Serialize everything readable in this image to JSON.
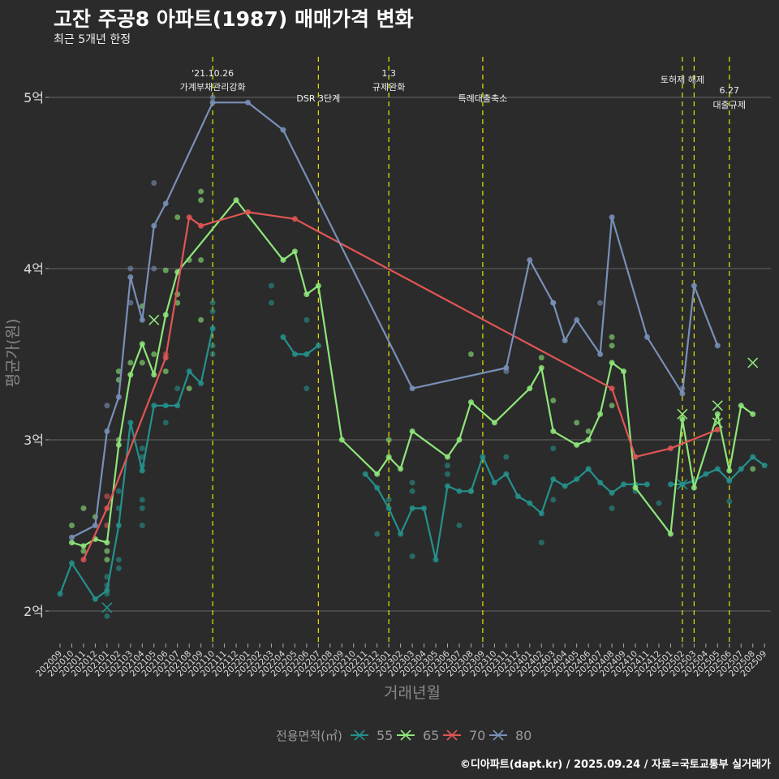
{
  "header": {
    "title": "고잔 주공8 아파트(1987) 매매가격 변화",
    "subtitle": "최근 5개년 한정"
  },
  "caption": "©디아파트(dapt.kr) / 2025.09.24 / 자료=국토교통부 실거래가",
  "chart_data": {
    "type": "line",
    "title": "고잔 주공8 아파트(1987) 매매가격 변화",
    "xlabel": "거래년월",
    "ylabel": "평균가(원)",
    "ylim": [
      1.85,
      5.25
    ],
    "yticks": [
      {
        "v": 2,
        "label": "2억"
      },
      {
        "v": 3,
        "label": "3억"
      },
      {
        "v": 4,
        "label": "4억"
      },
      {
        "v": 5,
        "label": "5억"
      }
    ],
    "grid": true,
    "x": [
      "202009",
      "202010",
      "202011",
      "202012",
      "202101",
      "202102",
      "202103",
      "202104",
      "202105",
      "202106",
      "202107",
      "202108",
      "202109",
      "202110",
      "202111",
      "202112",
      "202201",
      "202202",
      "202203",
      "202204",
      "202205",
      "202206",
      "202207",
      "202208",
      "202209",
      "202210",
      "202211",
      "202212",
      "202301",
      "202302",
      "202303",
      "202304",
      "202305",
      "202306",
      "202307",
      "202308",
      "202309",
      "202310",
      "202311",
      "202312",
      "202401",
      "202402",
      "202403",
      "202404",
      "202405",
      "202406",
      "202407",
      "202408",
      "202409",
      "202410",
      "202411",
      "202412",
      "202501",
      "202502",
      "202503",
      "202504",
      "202505",
      "202506",
      "202507",
      "202508",
      "202509"
    ],
    "legend": {
      "title": "전용면적(㎡)",
      "placement": "bottom"
    },
    "series": [
      {
        "name": "55",
        "color": "#24918c",
        "segments": [
          [
            [
              0,
              2.1
            ],
            [
              1,
              2.28
            ],
            [
              3,
              2.07
            ],
            [
              4,
              2.12
            ],
            [
              5,
              2.5
            ],
            [
              6,
              3.1
            ],
            [
              7,
              2.82
            ],
            [
              8,
              3.2
            ],
            [
              9,
              3.2
            ],
            [
              10,
              3.2
            ],
            [
              11,
              3.4
            ],
            [
              12,
              3.33
            ],
            [
              13,
              3.65
            ]
          ],
          [
            [
              19,
              3.6
            ],
            [
              20,
              3.5
            ],
            [
              21,
              3.5
            ],
            [
              22,
              3.55
            ]
          ],
          [
            [
              26,
              2.8
            ],
            [
              27,
              2.72
            ],
            [
              28,
              2.6
            ],
            [
              29,
              2.45
            ],
            [
              30,
              2.6
            ],
            [
              31,
              2.6
            ],
            [
              32,
              2.3
            ],
            [
              33,
              2.73
            ],
            [
              34,
              2.7
            ],
            [
              35,
              2.7
            ],
            [
              36,
              2.9
            ],
            [
              37,
              2.75
            ],
            [
              38,
              2.8
            ],
            [
              39,
              2.67
            ],
            [
              40,
              2.63
            ],
            [
              41,
              2.57
            ],
            [
              42,
              2.77
            ],
            [
              43,
              2.73
            ],
            [
              44,
              2.77
            ],
            [
              45,
              2.83
            ],
            [
              46,
              2.75
            ],
            [
              47,
              2.69
            ],
            [
              48,
              2.74
            ],
            [
              49,
              2.74
            ],
            [
              50,
              2.74
            ]
          ],
          [
            [
              52,
              2.74
            ],
            [
              53,
              2.74
            ],
            [
              54,
              2.76
            ],
            [
              55,
              2.8
            ],
            [
              56,
              2.83
            ],
            [
              57,
              2.76
            ],
            [
              58,
              2.83
            ],
            [
              59,
              2.9
            ],
            [
              60,
              2.85
            ]
          ]
        ]
      },
      {
        "name": "65",
        "color": "#8ee67a",
        "segments": [
          [
            [
              1,
              2.4
            ],
            [
              2,
              2.38
            ],
            [
              3,
              2.42
            ],
            [
              4,
              2.4
            ],
            [
              5,
              2.97
            ],
            [
              6,
              3.38
            ],
            [
              7,
              3.56
            ],
            [
              8,
              3.38
            ],
            [
              9,
              3.73
            ],
            [
              10,
              3.98
            ],
            [
              15,
              4.4
            ],
            [
              19,
              4.05
            ],
            [
              20,
              4.1
            ],
            [
              21,
              3.85
            ],
            [
              22,
              3.9
            ],
            [
              24,
              3.0
            ],
            [
              27,
              2.8
            ],
            [
              28,
              2.9
            ],
            [
              29,
              2.83
            ],
            [
              30,
              3.05
            ],
            [
              33,
              2.9
            ],
            [
              34,
              3.0
            ],
            [
              35,
              3.22
            ],
            [
              37,
              3.1
            ],
            [
              40,
              3.3
            ],
            [
              41,
              3.42
            ],
            [
              42,
              3.05
            ],
            [
              44,
              2.97
            ],
            [
              45,
              3.0
            ],
            [
              46,
              3.15
            ],
            [
              47,
              3.45
            ],
            [
              48,
              3.4
            ],
            [
              49,
              2.72
            ],
            [
              52,
              2.45
            ],
            [
              53,
              3.12
            ],
            [
              54,
              2.72
            ],
            [
              56,
              3.15
            ],
            [
              57,
              2.82
            ],
            [
              58,
              3.2
            ],
            [
              59,
              3.15
            ]
          ]
        ]
      },
      {
        "name": "70",
        "color": "#e25555",
        "segments": [
          [
            [
              2,
              2.3
            ],
            [
              4,
              2.6
            ],
            [
              9,
              3.48
            ],
            [
              11,
              4.3
            ],
            [
              12,
              4.25
            ],
            [
              16,
              4.33
            ],
            [
              20,
              4.29
            ],
            [
              47,
              3.3
            ],
            [
              49,
              2.9
            ],
            [
              52,
              2.95
            ],
            [
              56,
              3.06
            ]
          ]
        ]
      },
      {
        "name": "80",
        "color": "#7890b8",
        "segments": [
          [
            [
              1,
              2.43
            ],
            [
              3,
              2.5
            ],
            [
              4,
              3.05
            ],
            [
              5,
              3.25
            ],
            [
              6,
              3.95
            ],
            [
              7,
              3.7
            ],
            [
              8,
              4.25
            ],
            [
              9,
              4.38
            ],
            [
              13,
              4.97
            ],
            [
              16,
              4.97
            ],
            [
              19,
              4.81
            ],
            [
              30,
              3.3
            ],
            [
              38,
              3.42
            ],
            [
              40,
              4.05
            ],
            [
              42,
              3.8
            ],
            [
              43,
              3.58
            ],
            [
              44,
              3.7
            ],
            [
              46,
              3.5
            ],
            [
              47,
              4.3
            ],
            [
              50,
              3.6
            ],
            [
              53,
              3.27
            ],
            [
              54,
              3.9
            ],
            [
              56,
              3.55
            ]
          ]
        ]
      }
    ],
    "scatter": [
      [
        4,
        1.97,
        "55"
      ],
      [
        4,
        2.1,
        "55"
      ],
      [
        4,
        2.15,
        "55"
      ],
      [
        4,
        2.2,
        "55"
      ],
      [
        5,
        2.25,
        "55"
      ],
      [
        5,
        2.3,
        "55"
      ],
      [
        5,
        2.6,
        "55"
      ],
      [
        5,
        2.7,
        "55"
      ],
      [
        7,
        2.5,
        "55"
      ],
      [
        7,
        2.6,
        "55"
      ],
      [
        7,
        2.65,
        "55"
      ],
      [
        7,
        2.85,
        "55"
      ],
      [
        7,
        2.9,
        "55"
      ],
      [
        7,
        2.95,
        "55"
      ],
      [
        9,
        3.1,
        "55"
      ],
      [
        10,
        3.3,
        "55"
      ],
      [
        13,
        3.5,
        "55"
      ],
      [
        13,
        3.55,
        "55"
      ],
      [
        13,
        3.75,
        "55"
      ],
      [
        13,
        3.8,
        "55"
      ],
      [
        18,
        3.8,
        "55"
      ],
      [
        18,
        3.9,
        "55"
      ],
      [
        21,
        3.3,
        "55"
      ],
      [
        21,
        3.7,
        "55"
      ],
      [
        27,
        2.45,
        "55"
      ],
      [
        28,
        2.65,
        "55"
      ],
      [
        30,
        2.7,
        "55"
      ],
      [
        30,
        2.75,
        "55"
      ],
      [
        30,
        2.32,
        "55"
      ],
      [
        33,
        2.85,
        "55"
      ],
      [
        33,
        2.8,
        "55"
      ],
      [
        34,
        2.5,
        "55"
      ],
      [
        38,
        2.9,
        "55"
      ],
      [
        41,
        2.4,
        "55"
      ],
      [
        42,
        2.95,
        "55"
      ],
      [
        42,
        2.65,
        "55"
      ],
      [
        47,
        2.6,
        "55"
      ],
      [
        49,
        2.7,
        "55"
      ],
      [
        51,
        2.63,
        "55"
      ],
      [
        57,
        2.64,
        "55"
      ],
      [
        1,
        2.5,
        "65"
      ],
      [
        2,
        2.6,
        "65"
      ],
      [
        2,
        2.35,
        "65"
      ],
      [
        3,
        2.55,
        "65"
      ],
      [
        4,
        2.35,
        "65"
      ],
      [
        4,
        2.3,
        "65"
      ],
      [
        5,
        3.0,
        "65"
      ],
      [
        5,
        3.35,
        "65"
      ],
      [
        5,
        3.4,
        "65"
      ],
      [
        6,
        3.45,
        "65"
      ],
      [
        7,
        3.78,
        "65"
      ],
      [
        7,
        3.45,
        "65"
      ],
      [
        8,
        3.5,
        "65"
      ],
      [
        9,
        3.4,
        "65"
      ],
      [
        9,
        3.99,
        "65"
      ],
      [
        10,
        3.8,
        "65"
      ],
      [
        10,
        3.85,
        "65"
      ],
      [
        10,
        4.3,
        "65"
      ],
      [
        11,
        4.05,
        "65"
      ],
      [
        11,
        3.3,
        "65"
      ],
      [
        12,
        4.45,
        "65"
      ],
      [
        12,
        4.4,
        "65"
      ],
      [
        12,
        3.7,
        "65"
      ],
      [
        12,
        4.05,
        "65"
      ],
      [
        28,
        3.0,
        "65"
      ],
      [
        35,
        3.5,
        "65"
      ],
      [
        35,
        2.7,
        "65"
      ],
      [
        41,
        3.48,
        "65"
      ],
      [
        42,
        3.23,
        "65"
      ],
      [
        44,
        3.1,
        "65"
      ],
      [
        45,
        3.05,
        "65"
      ],
      [
        47,
        3.6,
        "65"
      ],
      [
        47,
        3.55,
        "65"
      ],
      [
        47,
        3.2,
        "65"
      ],
      [
        59,
        2.83,
        "65"
      ],
      [
        4,
        2.67,
        "70"
      ],
      [
        4,
        2.5,
        "70"
      ],
      [
        9,
        3.5,
        "70"
      ],
      [
        4,
        3.2,
        "80"
      ],
      [
        6,
        4.0,
        "80"
      ],
      [
        6,
        3.8,
        "80"
      ],
      [
        8,
        4.5,
        "80"
      ],
      [
        8,
        4.0,
        "80"
      ],
      [
        13,
        5.0,
        "80"
      ],
      [
        42,
        3.8,
        "80"
      ],
      [
        46,
        3.8,
        "80"
      ],
      [
        53,
        3.3,
        "80"
      ],
      [
        38,
        3.4,
        "80"
      ]
    ],
    "crosses": [
      [
        4,
        2.02,
        "55"
      ],
      [
        8,
        3.7,
        "65"
      ],
      [
        53,
        2.74,
        "55"
      ],
      [
        53,
        3.15,
        "65"
      ],
      [
        56,
        3.2,
        "65"
      ],
      [
        56,
        3.1,
        "65"
      ],
      [
        59,
        3.45,
        "65"
      ]
    ],
    "events": [
      {
        "month": "202110",
        "lines": [
          "'21.10.26",
          "가계부채관리강화"
        ],
        "row": 0
      },
      {
        "month": "202207",
        "lines": [
          "DSR 3단계"
        ],
        "row": 2
      },
      {
        "month": "202301",
        "lines": [
          "1.3",
          "규제완화"
        ],
        "row": 0
      },
      {
        "month": "202309",
        "lines": [
          "특례대출축소"
        ],
        "row": 2
      },
      {
        "month": "202502",
        "lines": [
          "토허제 해제"
        ],
        "row": 1
      },
      {
        "month": "202503",
        "lines": [],
        "row": 0
      },
      {
        "month": "202506",
        "lines": [
          "6.27",
          "대출규제"
        ],
        "row": 3
      }
    ]
  }
}
